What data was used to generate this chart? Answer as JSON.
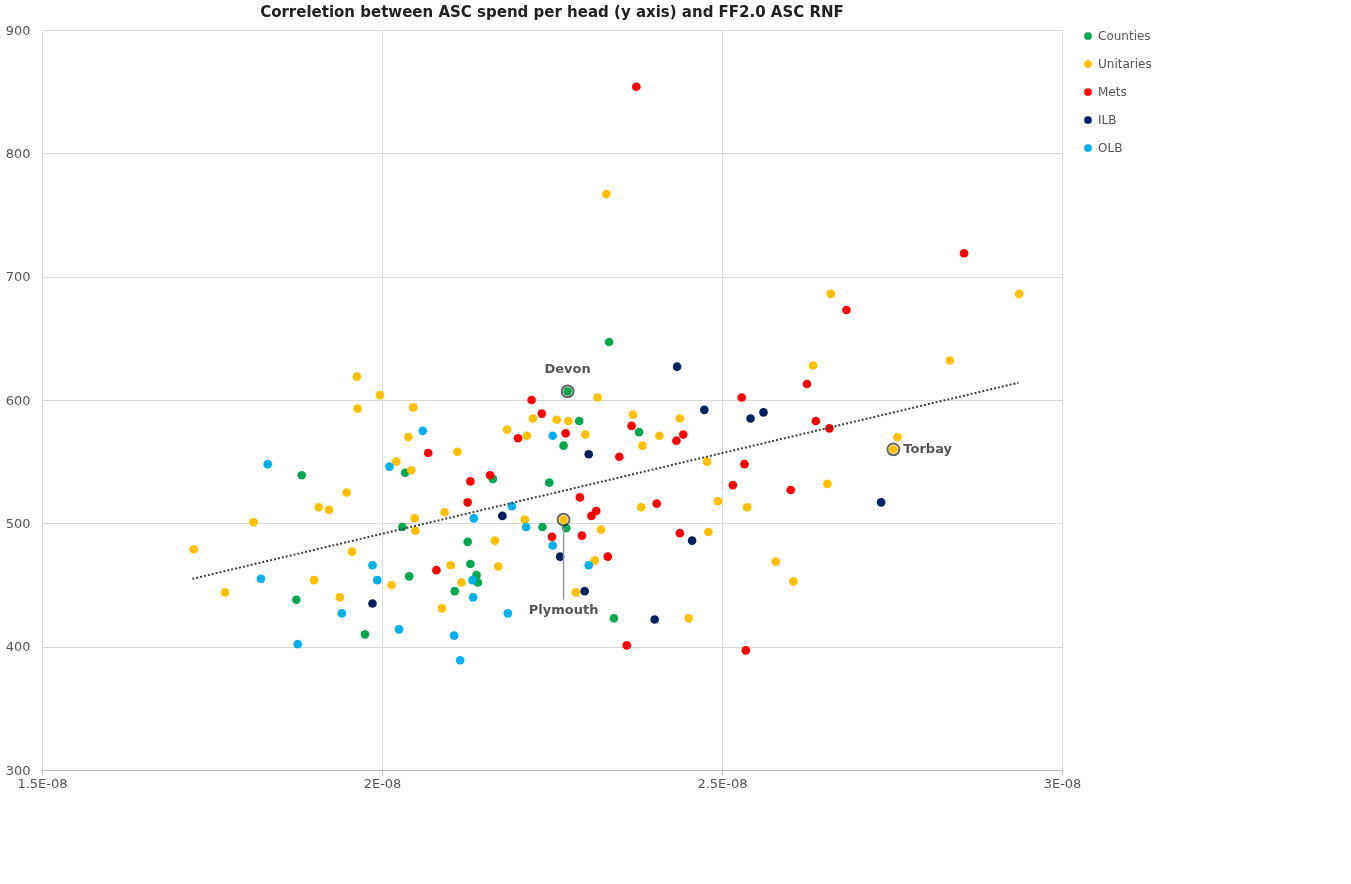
{
  "chart_data": {
    "type": "scatter",
    "title": "Correletion between ASC spend per head (y axis) and FF2.0 ASC RNF",
    "xlim": [
      1.5e-08,
      3e-08
    ],
    "ylim": [
      300,
      900
    ],
    "xticks": [
      {
        "value": 1.5e-08,
        "label": "1.5E-08"
      },
      {
        "value": 2e-08,
        "label": "2E-08"
      },
      {
        "value": 2.5e-08,
        "label": "2.5E-08"
      },
      {
        "value": 3e-08,
        "label": "3E-08"
      }
    ],
    "yticks": [
      300,
      400,
      500,
      600,
      700,
      800,
      900
    ],
    "grid": true,
    "legend": "right",
    "marker": "circle",
    "series": [
      {
        "name": "Counties",
        "color": "#00a850",
        "x": [
          1.882e-08,
          2.034e-08,
          2.03e-08,
          2.126e-08,
          2.13e-08,
          2.139e-08,
          2.141e-08,
          2.107e-08,
          2.04e-08,
          1.874e-08,
          1.975e-08,
          2.334e-08,
          2.273e-08,
          2.29e-08,
          2.378e-08,
          2.267e-08,
          2.246e-08,
          2.236e-08,
          2.271e-08,
          2.341e-08,
          2.163e-08
        ],
        "values": [
          539,
          541,
          497,
          485,
          467,
          458,
          452,
          445,
          457,
          438,
          410,
          647,
          607,
          583,
          574,
          563,
          533,
          497,
          496,
          423,
          536
        ]
      },
      {
        "name": "Unitaries",
        "color": "#ffc000",
        "x": [
          1.963e-08,
          1.997e-08,
          1.964e-08,
          2.046e-08,
          2.039e-08,
          2.111e-08,
          2.021e-08,
          2.043e-08,
          1.948e-08,
          1.907e-08,
          1.922e-08,
          1.811e-08,
          1.723e-08,
          2.092e-08,
          2.048e-08,
          2.049e-08,
          1.956e-08,
          2.101e-08,
          2.014e-08,
          2.117e-08,
          1.9e-08,
          1.769e-08,
          1.938e-08,
          2.088e-08,
          2.317e-08,
          2.222e-08,
          2.257e-08,
          2.274e-08,
          2.184e-08,
          2.213e-08,
          2.299e-08,
          2.369e-08,
          2.438e-08,
          2.408e-08,
          2.383e-08,
          2.478e-08,
          2.494e-08,
          2.537e-08,
          2.381e-08,
          2.21e-08,
          2.267e-08,
          2.322e-08,
          2.166e-08,
          2.48e-08,
          2.171e-08,
          2.313e-08,
          2.285e-08,
          2.451e-08,
          2.33e-08,
          2.66e-08,
          2.937e-08,
          2.634e-08,
          2.835e-08,
          2.758e-08,
          2.752e-08,
          2.655e-08,
          2.579e-08,
          2.605e-08
        ],
        "values": [
          619,
          604,
          593,
          594,
          570,
          558,
          550,
          543,
          525,
          513,
          511,
          501,
          479,
          509,
          504,
          494,
          477,
          466,
          450,
          452,
          454,
          444,
          440,
          431,
          602,
          585,
          584,
          583,
          576,
          571,
          572,
          588,
          585,
          571,
          563,
          550,
          518,
          513,
          513,
          503,
          503,
          495,
          486,
          493,
          465,
          470,
          444,
          423,
          767,
          686,
          686,
          628,
          632,
          570,
          560,
          532,
          469,
          453
        ]
      },
      {
        "name": "Mets",
        "color": "#ff0000",
        "x": [
          2.068e-08,
          2.13e-08,
          2.126e-08,
          2.08e-08,
          2.159e-08,
          2.22e-08,
          2.235e-08,
          2.2e-08,
          2.27e-08,
          2.367e-08,
          2.349e-08,
          2.433e-08,
          2.443e-08,
          2.529e-08,
          2.533e-08,
          2.516e-08,
          2.291e-08,
          2.315e-08,
          2.308e-08,
          2.404e-08,
          2.25e-08,
          2.294e-08,
          2.332e-08,
          2.438e-08,
          2.36e-08,
          2.535e-08,
          2.374e-08,
          2.856e-08,
          2.683e-08,
          2.625e-08,
          2.638e-08,
          2.658e-08,
          2.601e-08
        ],
        "values": [
          557,
          534,
          517,
          462,
          539,
          600,
          589,
          569,
          573,
          579,
          554,
          567,
          572,
          602,
          548,
          531,
          521,
          510,
          506,
          516,
          489,
          490,
          473,
          492,
          401,
          397,
          854,
          719,
          673,
          613,
          583,
          577,
          527
        ]
      },
      {
        "name": "ILB",
        "color": "#002060",
        "x": [
          1.986e-08,
          2.434e-08,
          2.474e-08,
          2.542e-08,
          2.561e-08,
          2.304e-08,
          2.177e-08,
          2.456e-08,
          2.262e-08,
          2.298e-08,
          2.401e-08,
          2.734e-08
        ],
        "values": [
          435,
          627,
          592,
          585,
          590,
          556,
          506,
          486,
          473,
          445,
          422,
          517
        ]
      },
      {
        "name": "OLB",
        "color": "#00b0f0",
        "x": [
          2.06e-08,
          1.832e-08,
          2.011e-08,
          2.135e-08,
          1.986e-08,
          1.993e-08,
          1.822e-08,
          1.941e-08,
          2.133e-08,
          2.134e-08,
          2.025e-08,
          2.106e-08,
          1.876e-08,
          2.115e-08,
          2.191e-08,
          2.212e-08,
          2.251e-08,
          2.251e-08,
          2.304e-08,
          2.185e-08
        ],
        "values": [
          575,
          548,
          546,
          504,
          466,
          454,
          455,
          427,
          454,
          440,
          414,
          409,
          402,
          389,
          514,
          497,
          571,
          482,
          466,
          427
        ]
      },
      {
        "type": "line",
        "color": "#404040",
        "line_style": "dotted",
        "marker": "none",
        "x": [
          1.721e-08,
          2.936e-08
        ],
        "values": [
          455,
          614
        ]
      }
    ],
    "annotations": [
      {
        "text": "Devon",
        "x": 2.273e-08,
        "y": 607
      },
      {
        "text": "Plymouth",
        "x": 2.267e-08,
        "y": 503
      },
      {
        "text": "Torbay",
        "x": 2.752e-08,
        "y": 560
      }
    ]
  }
}
